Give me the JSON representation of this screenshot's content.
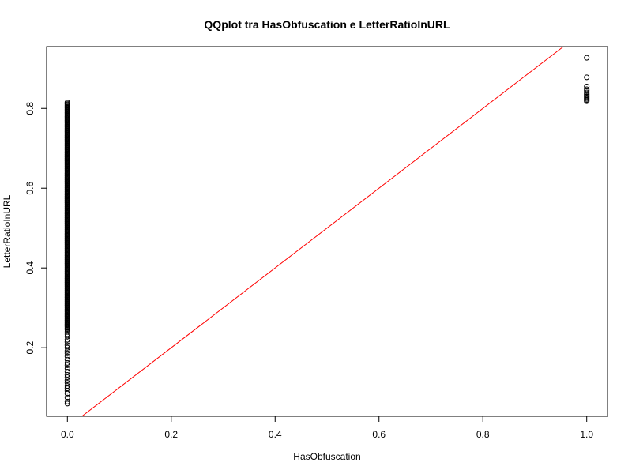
{
  "chart_data": {
    "type": "scatter",
    "title": "QQplot tra HasObfuscation e LetterRatioInURL",
    "xlabel": "HasObfuscation",
    "ylabel": "LetterRatioInURL",
    "xlim": [
      -0.04,
      1.04
    ],
    "ylim": [
      0.028,
      0.955
    ],
    "x_ticks": [
      0.0,
      0.2,
      0.4,
      0.6,
      0.8,
      1.0
    ],
    "x_tick_labels": [
      "0.0",
      "0.2",
      "0.4",
      "0.6",
      "0.8",
      "1.0"
    ],
    "y_ticks": [
      0.2,
      0.4,
      0.6,
      0.8
    ],
    "y_tick_labels": [
      "0.2",
      "0.4",
      "0.6",
      "0.8"
    ],
    "grid": false,
    "point_style": "open-circle",
    "reference_line": {
      "intercept": 0,
      "slope": 1,
      "color": "#ff0000"
    },
    "series": [
      {
        "x_value": 0.0,
        "y_dense_range": [
          0.245,
          0.815
        ],
        "y_sparse": [
          0.06,
          0.065,
          0.075,
          0.085,
          0.092,
          0.098,
          0.104,
          0.112,
          0.118,
          0.126,
          0.132,
          0.14,
          0.148,
          0.156,
          0.162,
          0.17,
          0.178,
          0.186,
          0.192,
          0.2,
          0.206,
          0.214,
          0.22,
          0.228,
          0.234,
          0.24
        ]
      },
      {
        "x_value": 1.0,
        "y_values": [
          0.818,
          0.821,
          0.824,
          0.827,
          0.83,
          0.833,
          0.836,
          0.84,
          0.844,
          0.848,
          0.855,
          0.878,
          0.927
        ]
      }
    ]
  }
}
